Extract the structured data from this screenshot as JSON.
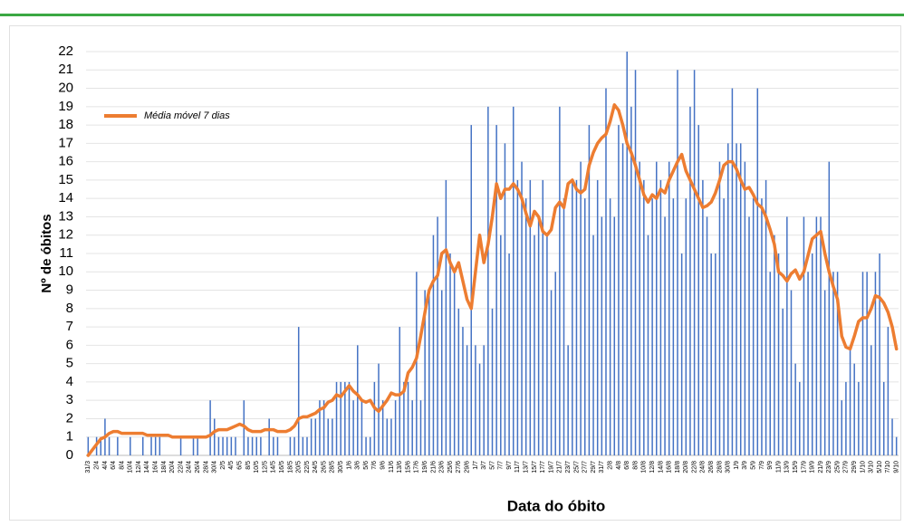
{
  "chart_data": {
    "type": "bar",
    "y_label": "Nº de óbitos",
    "x_label": "Data do óbito",
    "categories": [
      "31/3",
      null,
      "2/4",
      null,
      "4/4",
      null,
      "6/4",
      null,
      "8/4",
      null,
      "10/4",
      null,
      "12/4",
      null,
      "14/4",
      null,
      "16/4",
      null,
      "18/4",
      null,
      "20/4",
      null,
      "22/4",
      null,
      "24/4",
      null,
      "26/4",
      null,
      "28/4",
      null,
      "30/4",
      null,
      "2/5",
      null,
      "4/5",
      null,
      "6/5",
      null,
      "8/5",
      null,
      "10/5",
      null,
      "12/5",
      null,
      "14/5",
      null,
      "16/5",
      null,
      "18/5",
      null,
      "20/5",
      null,
      "22/5",
      null,
      "24/5",
      null,
      "26/5",
      null,
      "28/5",
      null,
      "30/5",
      null,
      "1/6",
      null,
      "3/6",
      null,
      "5/6",
      null,
      "7/6",
      null,
      "9/6",
      null,
      "11/6",
      null,
      "13/6",
      null,
      "15/6",
      null,
      "17/6",
      null,
      "19/6",
      null,
      "21/6",
      null,
      "23/6",
      null,
      "25/6",
      null,
      "27/6",
      null,
      "29/6",
      null,
      "1/7",
      null,
      "3/7",
      null,
      "5/7",
      null,
      "7/7",
      null,
      "9/7",
      null,
      "11/7",
      null,
      "13/7",
      null,
      "15/7",
      null,
      "17/7",
      null,
      "19/7",
      null,
      "21/7",
      null,
      "23/7",
      null,
      "25/7",
      null,
      "27/7",
      null,
      "29/7",
      null,
      "31/7",
      null,
      "2/8",
      null,
      "4/8",
      null,
      "6/8",
      null,
      "8/8",
      null,
      "10/8",
      null,
      "12/8",
      null,
      "14/8",
      null,
      "16/8",
      null,
      "18/8",
      null,
      "20/8",
      null,
      "22/8",
      null,
      "24/8",
      null,
      "26/8",
      null,
      "28/8",
      null,
      "30/8",
      null,
      "1/9",
      null,
      "3/9",
      null,
      "5/9",
      null,
      "7/9",
      null,
      "9/9",
      null,
      "11/9",
      null,
      "13/9",
      null,
      "15/9",
      null,
      "17/9",
      null,
      "19/9",
      null,
      "21/9",
      null,
      "23/9",
      null,
      "25/9",
      null,
      "27/9",
      null,
      "29/9",
      null,
      "1/10",
      null,
      "3/10",
      null,
      "5/10",
      null,
      "7/10",
      null,
      "9/10"
    ],
    "series": [
      {
        "type": "bar",
        "color": "#4472c4",
        "values": [
          1,
          0,
          1,
          1,
          2,
          1,
          0,
          1,
          0,
          0,
          1,
          0,
          0,
          1,
          0,
          1,
          1,
          1,
          0,
          0,
          0,
          0,
          1,
          0,
          0,
          1,
          1,
          0,
          0,
          3,
          2,
          1,
          1,
          1,
          1,
          1,
          0,
          3,
          1,
          1,
          1,
          1,
          0,
          2,
          1,
          1,
          0,
          0,
          1,
          1,
          7,
          1,
          1,
          2,
          2,
          3,
          3,
          2,
          2,
          4,
          4,
          4,
          4,
          3,
          6,
          3,
          1,
          1,
          4,
          5,
          3,
          2,
          2,
          3,
          7,
          4,
          4,
          3,
          10,
          3,
          9,
          9,
          12,
          13,
          9,
          15,
          11,
          10,
          8,
          7,
          6,
          18,
          6,
          5,
          6,
          19,
          8,
          18,
          12,
          17,
          11,
          19,
          15,
          16,
          14,
          15,
          12,
          13,
          15,
          12,
          9,
          10,
          19,
          14,
          6,
          15,
          15,
          16,
          14,
          18,
          12,
          15,
          13,
          20,
          14,
          13,
          18,
          17,
          22,
          19,
          21,
          16,
          15,
          12,
          14,
          16,
          15,
          13,
          16,
          14,
          21,
          11,
          14,
          19,
          21,
          18,
          15,
          13,
          11,
          11,
          16,
          14,
          17,
          20,
          17,
          17,
          16,
          13,
          14,
          20,
          14,
          15,
          10,
          12,
          11,
          8,
          13,
          9,
          5,
          4,
          13,
          10,
          11,
          13,
          13,
          9,
          16,
          10,
          10,
          3,
          4,
          6,
          5,
          4,
          10,
          10,
          6,
          10,
          11,
          4,
          7,
          2,
          1
        ]
      },
      {
        "type": "line",
        "name": "Média móvel 7 dias",
        "color": "#ed7d31",
        "values": [
          0,
          0.3,
          0.6,
          0.9,
          1.0,
          1.2,
          1.3,
          1.3,
          1.2,
          1.2,
          1.2,
          1.2,
          1.2,
          1.2,
          1.1,
          1.1,
          1.1,
          1.1,
          1.1,
          1.1,
          1.0,
          1.0,
          1.0,
          1.0,
          1.0,
          1.0,
          1.0,
          1.0,
          1.0,
          1.1,
          1.3,
          1.4,
          1.4,
          1.4,
          1.5,
          1.6,
          1.7,
          1.6,
          1.4,
          1.3,
          1.3,
          1.3,
          1.4,
          1.4,
          1.4,
          1.3,
          1.3,
          1.3,
          1.4,
          1.6,
          2.0,
          2.1,
          2.1,
          2.2,
          2.3,
          2.5,
          2.6,
          2.9,
          3.0,
          3.3,
          3.2,
          3.5,
          3.8,
          3.5,
          3.3,
          3.0,
          2.9,
          3.0,
          2.6,
          2.4,
          2.7,
          3.0,
          3.4,
          3.3,
          3.3,
          3.5,
          4.5,
          4.8,
          5.3,
          6.5,
          7.8,
          9.0,
          9.5,
          9.8,
          11.0,
          11.2,
          10.5,
          10.0,
          10.5,
          9.5,
          8.5,
          8.0,
          10.0,
          12.0,
          10.5,
          11.5,
          13.0,
          14.8,
          14.0,
          14.5,
          14.5,
          14.8,
          14.5,
          14.0,
          13.2,
          12.5,
          13.3,
          13.0,
          12.2,
          12.0,
          12.3,
          13.5,
          13.8,
          13.5,
          14.8,
          15.0,
          14.5,
          14.3,
          14.5,
          15.8,
          16.5,
          17.0,
          17.3,
          17.5,
          18.2,
          19.1,
          18.8,
          18.0,
          17.0,
          16.5,
          15.8,
          15.0,
          14.2,
          13.8,
          14.2,
          14.0,
          14.5,
          14.3,
          15.0,
          15.5,
          16.0,
          16.4,
          15.5,
          15.0,
          14.5,
          14.0,
          13.5,
          13.6,
          13.8,
          14.3,
          15.0,
          15.8,
          16.0,
          16.0,
          15.6,
          15.0,
          14.5,
          14.6,
          14.2,
          13.7,
          13.5,
          13.0,
          12.3,
          11.5,
          10.0,
          9.8,
          9.5,
          9.9,
          10.1,
          9.6,
          10.0,
          10.9,
          11.8,
          12.0,
          12.2,
          11.0,
          10.0,
          9.2,
          8.5,
          6.5,
          5.9,
          5.8,
          6.5,
          7.3,
          7.5,
          7.5,
          8.0,
          8.7,
          8.6,
          8.3,
          7.8,
          7.0,
          5.8
        ]
      }
    ],
    "ylim": [
      0,
      22
    ],
    "yticks": [
      0,
      1,
      2,
      3,
      4,
      5,
      6,
      7,
      8,
      9,
      10,
      11,
      12,
      13,
      14,
      15,
      16,
      17,
      18,
      19,
      20,
      21,
      22
    ],
    "grid": true,
    "legend": "upper left"
  }
}
